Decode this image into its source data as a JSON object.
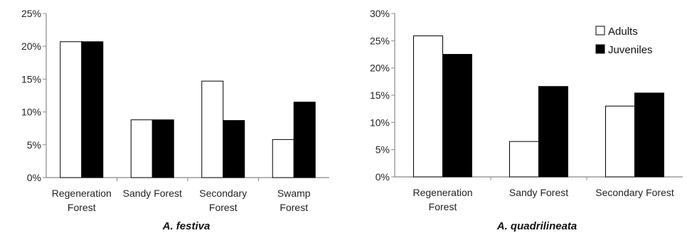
{
  "chart_data": [
    {
      "type": "bar",
      "title": "A. festiva",
      "categories": [
        [
          "Regeneration",
          "Forest"
        ],
        [
          "Sandy Forest"
        ],
        [
          "Secondary",
          "Forest"
        ],
        [
          "Swamp",
          "Forest"
        ]
      ],
      "series": [
        {
          "name": "Adults",
          "values": [
            20.7,
            8.8,
            14.7,
            5.8
          ],
          "color": "#ffffff"
        },
        {
          "name": "Juveniles",
          "values": [
            20.7,
            8.8,
            8.7,
            11.5
          ],
          "color": "#000000"
        }
      ],
      "ylim": [
        0,
        25
      ],
      "yticks": [
        "0%",
        "5%",
        "10%",
        "15%",
        "20%",
        "25%"
      ],
      "ytick_values": [
        0,
        5,
        10,
        15,
        20,
        25
      ],
      "legend": false,
      "grid": false
    },
    {
      "type": "bar",
      "title": "A. quadrilineata",
      "categories": [
        [
          "Regeneration",
          "Forest"
        ],
        [
          "Sandy Forest"
        ],
        [
          "Secondary Forest"
        ]
      ],
      "series": [
        {
          "name": "Adults",
          "values": [
            25.9,
            6.5,
            13.0
          ],
          "color": "#ffffff"
        },
        {
          "name": "Juveniles",
          "values": [
            22.5,
            16.6,
            15.4
          ],
          "color": "#000000"
        }
      ],
      "ylim": [
        0,
        30
      ],
      "yticks": [
        "0%",
        "5%",
        "10%",
        "15%",
        "20%",
        "25%",
        "30%"
      ],
      "ytick_values": [
        0,
        5,
        10,
        15,
        20,
        25,
        30
      ],
      "legend": true,
      "legend_position": "top-right",
      "grid": false
    }
  ]
}
